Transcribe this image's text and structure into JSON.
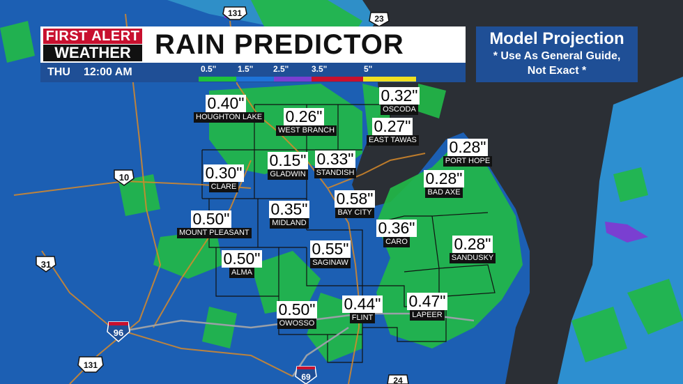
{
  "brand": {
    "line1": "FIRST ALERT",
    "line2": "WEATHER"
  },
  "title": "RAIN PREDICTOR",
  "time": {
    "day": "THU",
    "clock": "12:00 AM"
  },
  "scale": {
    "labels": [
      "0.5\"",
      "1.5\"",
      "2.5\"",
      "3.5\"",
      "5\""
    ],
    "colors": [
      "#1ec23c",
      "#1e73d8",
      "#7a3fd1",
      "#c8102e",
      "#f0e020"
    ]
  },
  "model": {
    "heading": "Model Projection",
    "line1": "* Use As General Guide,",
    "line2": "Not Exact *"
  },
  "locations": [
    {
      "name": "HOUGHTON LAKE",
      "value": "0.40\""
    },
    {
      "name": "WEST BRANCH",
      "value": "0.26\""
    },
    {
      "name": "OSCODA",
      "value": "0.32\""
    },
    {
      "name": "EAST TAWAS",
      "value": "0.27\""
    },
    {
      "name": "CLARE",
      "value": "0.30\""
    },
    {
      "name": "GLADWIN",
      "value": "0.15\""
    },
    {
      "name": "STANDISH",
      "value": "0.33\""
    },
    {
      "name": "PORT HOPE",
      "value": "0.28\""
    },
    {
      "name": "BAD AXE",
      "value": "0.28\""
    },
    {
      "name": "BAY CITY",
      "value": "0.58\""
    },
    {
      "name": "MOUNT PLEASANT",
      "value": "0.50\""
    },
    {
      "name": "MIDLAND",
      "value": "0.35\""
    },
    {
      "name": "CARO",
      "value": "0.36\""
    },
    {
      "name": "SANDUSKY",
      "value": "0.28\""
    },
    {
      "name": "ALMA",
      "value": "0.50\""
    },
    {
      "name": "SAGINAW",
      "value": "0.55\""
    },
    {
      "name": "OWOSSO",
      "value": "0.50\""
    },
    {
      "name": "FLINT",
      "value": "0.44\""
    },
    {
      "name": "LAPEER",
      "value": "0.47\""
    }
  ],
  "shields": {
    "us131_top": "131",
    "i75_top": "23",
    "us10": "10",
    "us31": "31",
    "i96": "96",
    "us131_bottom": "131",
    "i69": "69",
    "bottom_right": "24"
  }
}
